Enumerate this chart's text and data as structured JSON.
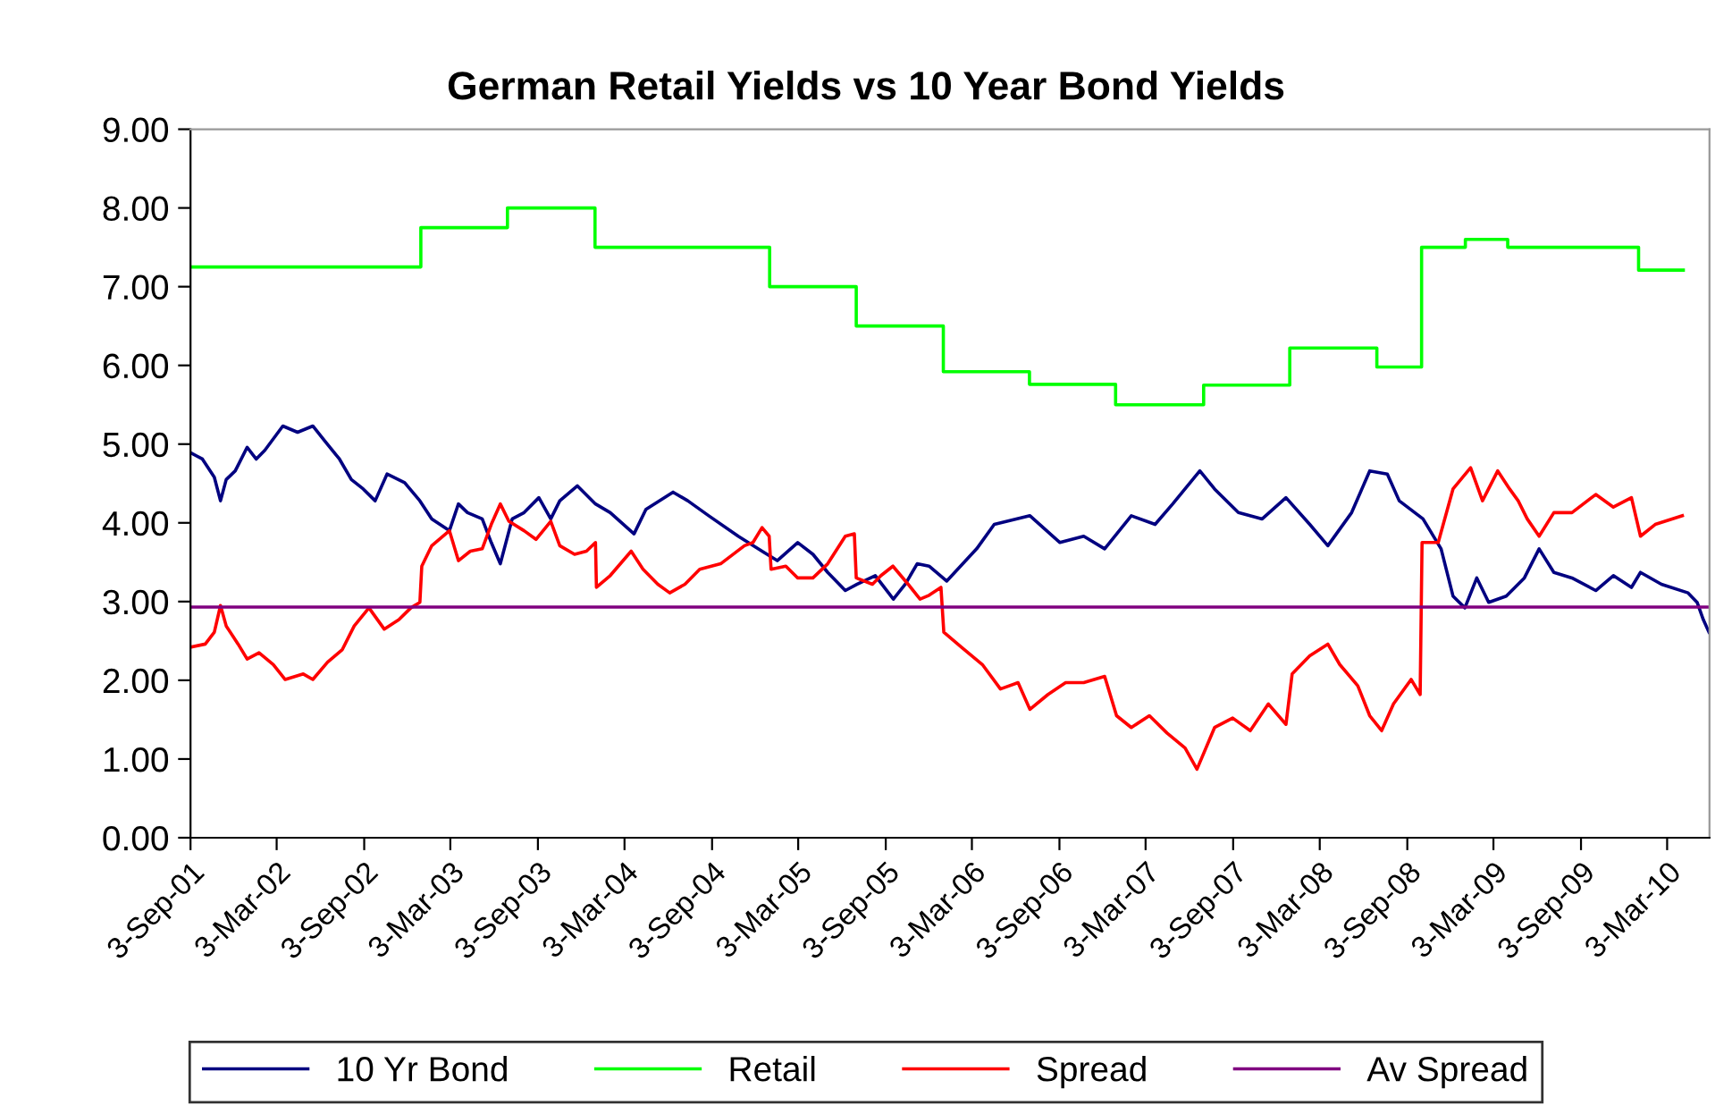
{
  "chart_data": {
    "type": "line",
    "title": "German Retail Yields vs 10 Year Bond Yields",
    "xlim": [
      "2001-09-03",
      "2010-05-31"
    ],
    "xticks": [
      {
        "value": "2001-09-03",
        "label": "3-Sep-01"
      },
      {
        "value": "2002-03-03",
        "label": "3-Mar-02"
      },
      {
        "value": "2002-09-03",
        "label": "3-Sep-02"
      },
      {
        "value": "2003-03-03",
        "label": "3-Mar-03"
      },
      {
        "value": "2003-09-03",
        "label": "3-Sep-03"
      },
      {
        "value": "2004-03-03",
        "label": "3-Mar-04"
      },
      {
        "value": "2004-09-03",
        "label": "3-Sep-04"
      },
      {
        "value": "2005-03-03",
        "label": "3-Mar-05"
      },
      {
        "value": "2005-09-03",
        "label": "3-Sep-05"
      },
      {
        "value": "2006-03-03",
        "label": "3-Mar-06"
      },
      {
        "value": "2006-09-03",
        "label": "3-Sep-06"
      },
      {
        "value": "2007-03-03",
        "label": "3-Mar-07"
      },
      {
        "value": "2007-09-03",
        "label": "3-Sep-07"
      },
      {
        "value": "2008-03-03",
        "label": "3-Mar-08"
      },
      {
        "value": "2008-09-03",
        "label": "3-Sep-08"
      },
      {
        "value": "2009-03-03",
        "label": "3-Mar-09"
      },
      {
        "value": "2009-09-03",
        "label": "3-Sep-09"
      },
      {
        "value": "2010-03-03",
        "label": "3-Mar-10"
      }
    ],
    "ylim": [
      0,
      9
    ],
    "yticks": [
      {
        "value": 0,
        "label": "0.00"
      },
      {
        "value": 1,
        "label": "1.00"
      },
      {
        "value": 2,
        "label": "2.00"
      },
      {
        "value": 3,
        "label": "3.00"
      },
      {
        "value": 4,
        "label": "4.00"
      },
      {
        "value": 5,
        "label": "5.00"
      },
      {
        "value": 6,
        "label": "6.00"
      },
      {
        "value": 7,
        "label": "7.00"
      },
      {
        "value": 8,
        "label": "8.00"
      },
      {
        "value": 9,
        "label": "9.00"
      }
    ],
    "grid": false,
    "legend": "bottom",
    "marker": "none",
    "line_style": "solid",
    "series": [
      {
        "name": "10 Yr Bond",
        "color": "#000080",
        "x": [
          "2001-09-03",
          "2001-09-28",
          "2001-10-23",
          "2001-11-05",
          "2001-11-17",
          "2001-12-06",
          "2001-12-31",
          "2002-01-19",
          "2002-02-06",
          "2002-03-16",
          "2002-04-16",
          "2002-05-18",
          "2002-06-12",
          "2002-07-13",
          "2002-08-07",
          "2002-09-01",
          "2002-09-26",
          "2002-10-21",
          "2002-11-27",
          "2002-12-29",
          "2003-01-23",
          "2003-03-01",
          "2003-03-20",
          "2003-04-08",
          "2003-05-09",
          "2003-05-28",
          "2003-06-16",
          "2003-07-11",
          "2003-08-05",
          "2003-09-05",
          "2003-09-30",
          "2003-10-19",
          "2003-11-25",
          "2004-01-02",
          "2004-02-02",
          "2004-03-23",
          "2004-04-17",
          "2004-06-13",
          "2004-07-14",
          "2004-08-27",
          "2004-10-28",
          "2004-12-17",
          "2005-01-18",
          "2005-03-02",
          "2005-04-03",
          "2005-05-04",
          "2005-06-10",
          "2005-07-05",
          "2005-08-12",
          "2005-09-19",
          "2005-10-14",
          "2005-11-08",
          "2005-12-03",
          "2006-01-09",
          "2006-03-13",
          "2006-04-19",
          "2006-07-03",
          "2006-09-04",
          "2006-10-24",
          "2006-12-07",
          "2007-02-01",
          "2007-03-23",
          "2007-04-29",
          "2007-06-25",
          "2007-07-26",
          "2007-09-14",
          "2007-11-03",
          "2007-12-23",
          "2008-02-11",
          "2008-03-20",
          "2008-05-09",
          "2008-06-16",
          "2008-07-23",
          "2008-08-17",
          "2008-10-06",
          "2008-11-13",
          "2008-12-08",
          "2009-01-02",
          "2009-01-27",
          "2009-02-21",
          "2009-03-30",
          "2009-05-07",
          "2009-06-07",
          "2009-07-08",
          "2009-08-15",
          "2009-10-04",
          "2009-11-10",
          "2009-12-18",
          "2010-01-06",
          "2010-02-19",
          "2010-04-16",
          "2010-05-05",
          "2010-05-18",
          "2010-05-30"
        ],
        "values": [
          4.89,
          4.81,
          4.58,
          4.28,
          4.55,
          4.66,
          4.96,
          4.81,
          4.92,
          5.23,
          5.15,
          5.23,
          5.04,
          4.81,
          4.55,
          4.43,
          4.28,
          4.62,
          4.51,
          4.28,
          4.05,
          3.9,
          4.24,
          4.13,
          4.05,
          3.75,
          3.48,
          4.05,
          4.13,
          4.32,
          4.05,
          4.28,
          4.47,
          4.24,
          4.13,
          3.86,
          4.17,
          4.39,
          4.28,
          4.09,
          3.83,
          3.64,
          3.52,
          3.75,
          3.6,
          3.37,
          3.14,
          3.22,
          3.33,
          3.03,
          3.22,
          3.48,
          3.45,
          3.26,
          3.67,
          3.98,
          4.09,
          3.75,
          3.83,
          3.67,
          4.09,
          3.98,
          4.24,
          4.66,
          4.43,
          4.13,
          4.05,
          4.32,
          3.98,
          3.71,
          4.13,
          4.66,
          4.62,
          4.28,
          4.05,
          3.67,
          3.07,
          2.92,
          3.3,
          2.99,
          3.07,
          3.3,
          3.67,
          3.37,
          3.3,
          3.14,
          3.33,
          3.18,
          3.37,
          3.22,
          3.11,
          2.99,
          2.77,
          2.61
        ]
      },
      {
        "name": "Retail",
        "color": "#00ff00",
        "type": "step",
        "x": [
          "2001-09-03",
          "2002-12-31",
          "2003-07-01",
          "2004-01-01",
          "2005-01-02",
          "2005-07-03",
          "2006-01-02",
          "2006-07-02",
          "2006-12-30",
          "2007-07-03",
          "2007-12-31",
          "2008-07-01",
          "2008-10-03",
          "2009-01-03",
          "2009-04-02",
          "2010-01-02",
          "2010-04-06"
        ],
        "values": [
          7.25,
          7.75,
          8.0,
          7.5,
          7.0,
          6.5,
          5.92,
          5.76,
          5.5,
          5.75,
          6.22,
          5.98,
          7.5,
          7.6,
          7.5,
          7.21,
          7.21
        ]
      },
      {
        "name": "Spread",
        "color": "#ff0000",
        "x": [
          "2001-09-03",
          "2001-10-04",
          "2001-10-23",
          "2001-11-05",
          "2001-11-17",
          "2001-12-12",
          "2001-12-31",
          "2002-01-25",
          "2002-02-24",
          "2002-03-21",
          "2002-04-28",
          "2002-05-18",
          "2002-06-18",
          "2002-07-19",
          "2002-08-13",
          "2002-09-13",
          "2002-10-15",
          "2002-11-15",
          "2002-12-10",
          "2002-12-29",
          "2003-01-02",
          "2003-01-23",
          "2003-03-01",
          "2003-03-20",
          "2003-04-14",
          "2003-05-09",
          "2003-05-28",
          "2003-06-16",
          "2003-07-04",
          "2003-08-05",
          "2003-08-30",
          "2003-09-30",
          "2003-10-19",
          "2003-11-19",
          "2003-12-14",
          "2004-01-02",
          "2004-01-04",
          "2004-02-02",
          "2004-03-17",
          "2004-04-11",
          "2004-05-12",
          "2004-06-06",
          "2004-07-08",
          "2004-08-08",
          "2004-09-21",
          "2004-11-10",
          "2004-11-28",
          "2004-12-17",
          "2005-01-01",
          "2005-01-05",
          "2005-02-05",
          "2005-03-02",
          "2005-04-03",
          "2005-05-04",
          "2005-06-10",
          "2005-06-29",
          "2005-07-03",
          "2005-08-06",
          "2005-08-24",
          "2005-09-18",
          "2005-10-20",
          "2005-11-14",
          "2005-12-03",
          "2005-12-28",
          "2006-01-03",
          "2006-02-09",
          "2006-03-25",
          "2006-05-02",
          "2006-06-08",
          "2006-07-03",
          "2006-08-10",
          "2006-09-16",
          "2006-10-24",
          "2006-12-07",
          "2007-01-01",
          "2007-02-01",
          "2007-03-11",
          "2007-04-17",
          "2007-05-25",
          "2007-06-19",
          "2007-07-26",
          "2007-09-02",
          "2007-10-09",
          "2007-11-16",
          "2007-12-23",
          "2008-01-05",
          "2008-02-11",
          "2008-03-20",
          "2008-04-14",
          "2008-05-22",
          "2008-06-16",
          "2008-07-11",
          "2008-08-05",
          "2008-09-11",
          "2008-09-30",
          "2008-10-04",
          "2008-11-07",
          "2008-12-08",
          "2009-01-14",
          "2009-02-08",
          "2009-03-12",
          "2009-04-06",
          "2009-04-24",
          "2009-05-13",
          "2009-06-07",
          "2009-07-08",
          "2009-08-15",
          "2009-10-04",
          "2009-11-10",
          "2009-12-18",
          "2010-01-06",
          "2010-02-06",
          "2010-04-04"
        ],
        "values": [
          2.42,
          2.46,
          2.61,
          2.95,
          2.69,
          2.46,
          2.27,
          2.35,
          2.2,
          2.01,
          2.08,
          2.01,
          2.23,
          2.39,
          2.69,
          2.92,
          2.65,
          2.77,
          2.92,
          2.99,
          3.45,
          3.71,
          3.9,
          3.52,
          3.64,
          3.67,
          3.98,
          4.24,
          4.02,
          3.9,
          3.79,
          4.02,
          3.71,
          3.6,
          3.64,
          3.75,
          3.18,
          3.33,
          3.64,
          3.41,
          3.22,
          3.11,
          3.22,
          3.41,
          3.48,
          3.71,
          3.75,
          3.94,
          3.83,
          3.41,
          3.45,
          3.3,
          3.3,
          3.48,
          3.83,
          3.86,
          3.3,
          3.22,
          3.33,
          3.45,
          3.22,
          3.03,
          3.08,
          3.18,
          2.61,
          2.42,
          2.2,
          1.89,
          1.97,
          1.63,
          1.82,
          1.97,
          1.97,
          2.05,
          1.55,
          1.4,
          1.55,
          1.33,
          1.14,
          0.87,
          1.4,
          1.52,
          1.36,
          1.7,
          1.44,
          2.08,
          2.31,
          2.46,
          2.2,
          1.93,
          1.55,
          1.36,
          1.7,
          2.01,
          1.82,
          3.75,
          3.75,
          4.43,
          4.7,
          4.28,
          4.66,
          4.43,
          4.28,
          4.05,
          3.83,
          4.13,
          4.13,
          4.36,
          4.2,
          4.32,
          3.83,
          3.98,
          4.09
        ]
      },
      {
        "name": "Av Spread",
        "color": "#800080",
        "x": [
          "2001-09-03",
          "2010-05-31"
        ],
        "values": [
          2.93,
          2.93
        ]
      }
    ]
  }
}
